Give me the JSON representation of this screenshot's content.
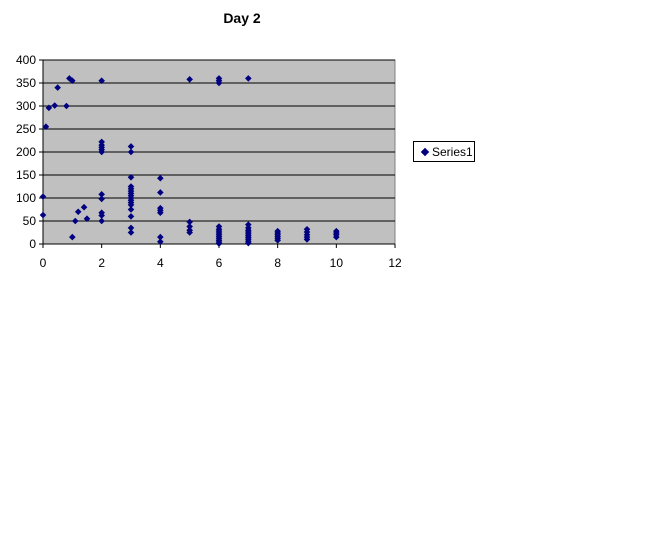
{
  "chart_data": {
    "type": "scatter",
    "title": "Day 2",
    "xlabel": "",
    "ylabel": "",
    "xlim": [
      0,
      12
    ],
    "ylim": [
      0,
      400
    ],
    "xticks": [
      0,
      2,
      4,
      6,
      8,
      10,
      12
    ],
    "yticks": [
      0,
      50,
      100,
      150,
      200,
      250,
      300,
      350,
      400
    ],
    "grid": "horizontal",
    "plot_background": "#c0c0c0",
    "marker": "diamond",
    "marker_color": "#000080",
    "legend_position": "right",
    "series": [
      {
        "name": "Series1",
        "points": [
          [
            0,
            103
          ],
          [
            0,
            63
          ],
          [
            0.1,
            255
          ],
          [
            0.2,
            296
          ],
          [
            0.4,
            301
          ],
          [
            0.5,
            340
          ],
          [
            0.8,
            300
          ],
          [
            0.9,
            360
          ],
          [
            1,
            355
          ],
          [
            1,
            15
          ],
          [
            1.1,
            50
          ],
          [
            1.2,
            70
          ],
          [
            1.4,
            80
          ],
          [
            1.5,
            55
          ],
          [
            2,
            355
          ],
          [
            2,
            222
          ],
          [
            2,
            215
          ],
          [
            2,
            210
          ],
          [
            2,
            205
          ],
          [
            2,
            200
          ],
          [
            2,
            108
          ],
          [
            2,
            98
          ],
          [
            2,
            68
          ],
          [
            2,
            62
          ],
          [
            2,
            50
          ],
          [
            3,
            212
          ],
          [
            3,
            200
          ],
          [
            3,
            145
          ],
          [
            3,
            125
          ],
          [
            3,
            120
          ],
          [
            3,
            115
          ],
          [
            3,
            110
          ],
          [
            3,
            105
          ],
          [
            3,
            100
          ],
          [
            3,
            95
          ],
          [
            3,
            90
          ],
          [
            3,
            85
          ],
          [
            3,
            75
          ],
          [
            3,
            60
          ],
          [
            3,
            35
          ],
          [
            3,
            25
          ],
          [
            4,
            143
          ],
          [
            4,
            112
          ],
          [
            4,
            78
          ],
          [
            4,
            73
          ],
          [
            4,
            68
          ],
          [
            4,
            15
          ],
          [
            4,
            5
          ],
          [
            5,
            358
          ],
          [
            5,
            48
          ],
          [
            5,
            38
          ],
          [
            5,
            30
          ],
          [
            5,
            25
          ],
          [
            6,
            360
          ],
          [
            6,
            355
          ],
          [
            6,
            350
          ],
          [
            6,
            38
          ],
          [
            6,
            32
          ],
          [
            6,
            28
          ],
          [
            6,
            24
          ],
          [
            6,
            20
          ],
          [
            6,
            16
          ],
          [
            6,
            12
          ],
          [
            6,
            8
          ],
          [
            6,
            4
          ],
          [
            6,
            1
          ],
          [
            7,
            360
          ],
          [
            7,
            42
          ],
          [
            7,
            35
          ],
          [
            7,
            30
          ],
          [
            7,
            26
          ],
          [
            7,
            22
          ],
          [
            7,
            18
          ],
          [
            7,
            14
          ],
          [
            7,
            10
          ],
          [
            7,
            6
          ],
          [
            7,
            2
          ],
          [
            8,
            28
          ],
          [
            8,
            24
          ],
          [
            8,
            20
          ],
          [
            8,
            16
          ],
          [
            8,
            12
          ],
          [
            8,
            8
          ],
          [
            9,
            32
          ],
          [
            9,
            26
          ],
          [
            9,
            20
          ],
          [
            9,
            15
          ],
          [
            9,
            10
          ],
          [
            10,
            28
          ],
          [
            10,
            24
          ],
          [
            10,
            20
          ],
          [
            10,
            15
          ]
        ]
      }
    ]
  }
}
